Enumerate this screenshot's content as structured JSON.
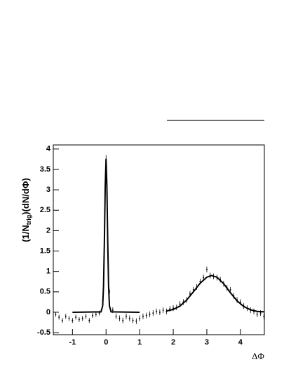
{
  "chart_data": {
    "type": "scatter",
    "x_label": "ΔΦ",
    "y_label": {
      "pre": "(1/N",
      "sub": "trig",
      "post": ")(dN/dΦ)"
    },
    "xlim": [
      -1.5708,
      4.7124
    ],
    "ylim": [
      -0.55,
      4.1
    ],
    "xticks": [
      -1,
      0,
      1,
      2,
      3,
      4
    ],
    "yticks": [
      -0.5,
      0,
      0.5,
      1,
      1.5,
      2,
      2.5,
      3,
      3.5,
      4
    ],
    "color": "#000000",
    "points": {
      "x": [
        -1.5,
        -1.4,
        -1.3,
        -1.2,
        -1.1,
        -1.0,
        -0.9,
        -0.8,
        -0.7,
        -0.6,
        -0.5,
        -0.4,
        -0.3,
        -0.2,
        -0.1,
        -0.05,
        0,
        0.05,
        0.1,
        0.2,
        0.3,
        0.4,
        0.5,
        0.6,
        0.7,
        0.8,
        0.9,
        1.0,
        1.1,
        1.2,
        1.3,
        1.4,
        1.5,
        1.6,
        1.7,
        1.8,
        1.9,
        2.0,
        2.1,
        2.2,
        2.3,
        2.4,
        2.5,
        2.6,
        2.7,
        2.8,
        2.9,
        3.0,
        3.1,
        3.2,
        3.3,
        3.4,
        3.5,
        3.6,
        3.7,
        3.8,
        3.9,
        4.0,
        4.1,
        4.2,
        4.3,
        4.4,
        4.5,
        4.6,
        4.7
      ],
      "values": [
        -0.05,
        -0.12,
        -0.2,
        -0.1,
        -0.15,
        -0.2,
        -0.12,
        -0.18,
        -0.15,
        -0.1,
        -0.2,
        -0.08,
        -0.05,
        -0.02,
        0.3,
        1.9,
        3.75,
        1.5,
        0.5,
        0.05,
        -0.1,
        -0.15,
        -0.2,
        -0.1,
        -0.15,
        -0.2,
        -0.22,
        -0.15,
        -0.1,
        -0.08,
        -0.05,
        -0.02,
        0.02,
        0.0,
        0.05,
        0.02,
        0.08,
        0.1,
        0.12,
        0.2,
        0.25,
        0.3,
        0.45,
        0.55,
        0.62,
        0.75,
        0.85,
        1.05,
        0.9,
        0.88,
        0.85,
        0.8,
        0.7,
        0.6,
        0.55,
        0.4,
        0.3,
        0.25,
        0.15,
        0.1,
        0.05,
        0.02,
        -0.05,
        -0.02,
        -0.1
      ],
      "errors": [
        0.06,
        0.06,
        0.06,
        0.06,
        0.06,
        0.06,
        0.06,
        0.06,
        0.06,
        0.06,
        0.06,
        0.06,
        0.06,
        0.06,
        0.06,
        0.1,
        0.1,
        0.1,
        0.07,
        0.07,
        0.07,
        0.07,
        0.07,
        0.07,
        0.07,
        0.07,
        0.07,
        0.07,
        0.07,
        0.07,
        0.07,
        0.07,
        0.07,
        0.07,
        0.07,
        0.07,
        0.07,
        0.07,
        0.07,
        0.07,
        0.07,
        0.07,
        0.07,
        0.07,
        0.07,
        0.07,
        0.07,
        0.07,
        0.07,
        0.07,
        0.07,
        0.07,
        0.07,
        0.07,
        0.07,
        0.07,
        0.07,
        0.07,
        0.07,
        0.07,
        0.07,
        0.07,
        0.07,
        0.07,
        0.07
      ]
    },
    "fits": [
      {
        "x": [
          -1,
          -0.15,
          -0.1,
          -0.075,
          -0.05,
          -0.025,
          0,
          0.025,
          0.05,
          0.075,
          0.1,
          0.15,
          1
        ],
        "values": [
          0,
          0.01,
          0.16,
          0.65,
          1.72,
          3.08,
          3.75,
          3.08,
          1.72,
          0.65,
          0.16,
          0.01,
          0
        ]
      },
      {
        "x": [
          1.8,
          2.0,
          2.2,
          2.4,
          2.6,
          2.8,
          3.0,
          3.14,
          3.3,
          3.5,
          3.7,
          3.9,
          4.1,
          4.3,
          4.5,
          4.71
        ],
        "values": [
          0.03,
          0.07,
          0.15,
          0.3,
          0.5,
          0.71,
          0.86,
          0.9,
          0.86,
          0.7,
          0.48,
          0.28,
          0.14,
          0.06,
          0.02,
          0.01
        ]
      }
    ]
  }
}
